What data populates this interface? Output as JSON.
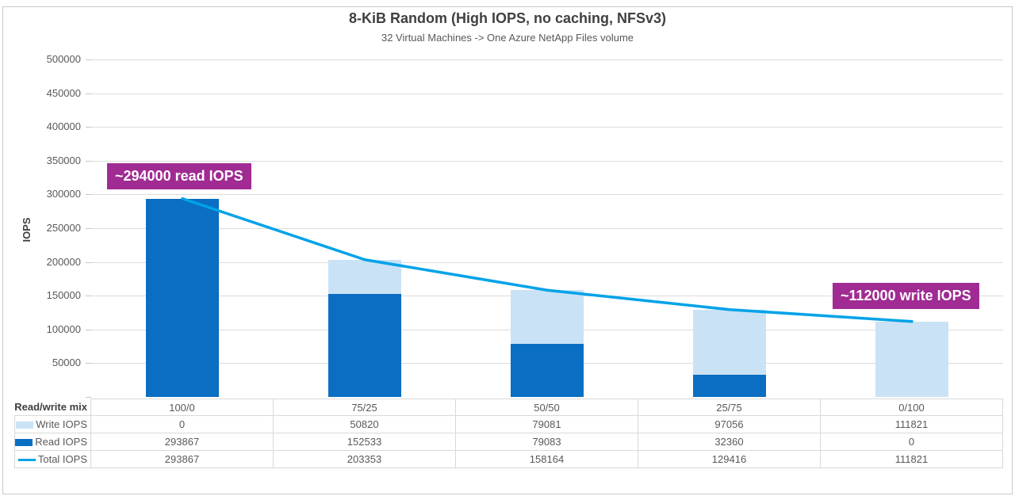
{
  "chart_data": {
    "type": "combo-stacked-bar-line",
    "title": "8-KiB Random (High IOPS, no caching, NFSv3)",
    "subtitle": "32 Virtual Machines -> One Azure NetApp Files volume",
    "ylabel": "IOPS",
    "row_header": "Read/write mix",
    "categories": [
      "100/0",
      "75/25",
      "50/50",
      "25/75",
      "0/100"
    ],
    "series": [
      {
        "name": "Write IOPS",
        "type": "bar",
        "stack_position": "top",
        "color": "#C9E2F5",
        "values": [
          0,
          50820,
          79081,
          97056,
          111821
        ]
      },
      {
        "name": "Read IOPS",
        "type": "bar",
        "stack_position": "bottom",
        "color": "#0A6EC2",
        "values": [
          293867,
          152533,
          79083,
          32360,
          0
        ]
      },
      {
        "name": "Total IOPS",
        "type": "line",
        "color": "#00A2E8",
        "values": [
          293867,
          203353,
          158164,
          129416,
          111821
        ]
      }
    ],
    "ylim": [
      0,
      500000
    ],
    "ytick_step": 50000,
    "yticks": [
      50000,
      100000,
      150000,
      200000,
      250000,
      300000,
      350000,
      400000,
      450000,
      500000
    ],
    "grid": true,
    "legend_position": "data-table",
    "annotations": [
      {
        "text": "~294000 read IOPS",
        "bg": "#A02B93",
        "text_color": "#FFFFFF"
      },
      {
        "text": "~112000 write IOPS",
        "bg": "#A02B93",
        "text_color": "#FFFFFF"
      }
    ],
    "colors": {
      "gridline": "#DCDCDC",
      "table_border": "#D9D9D9",
      "title_text": "#404040",
      "axis_text": "#595959"
    }
  }
}
